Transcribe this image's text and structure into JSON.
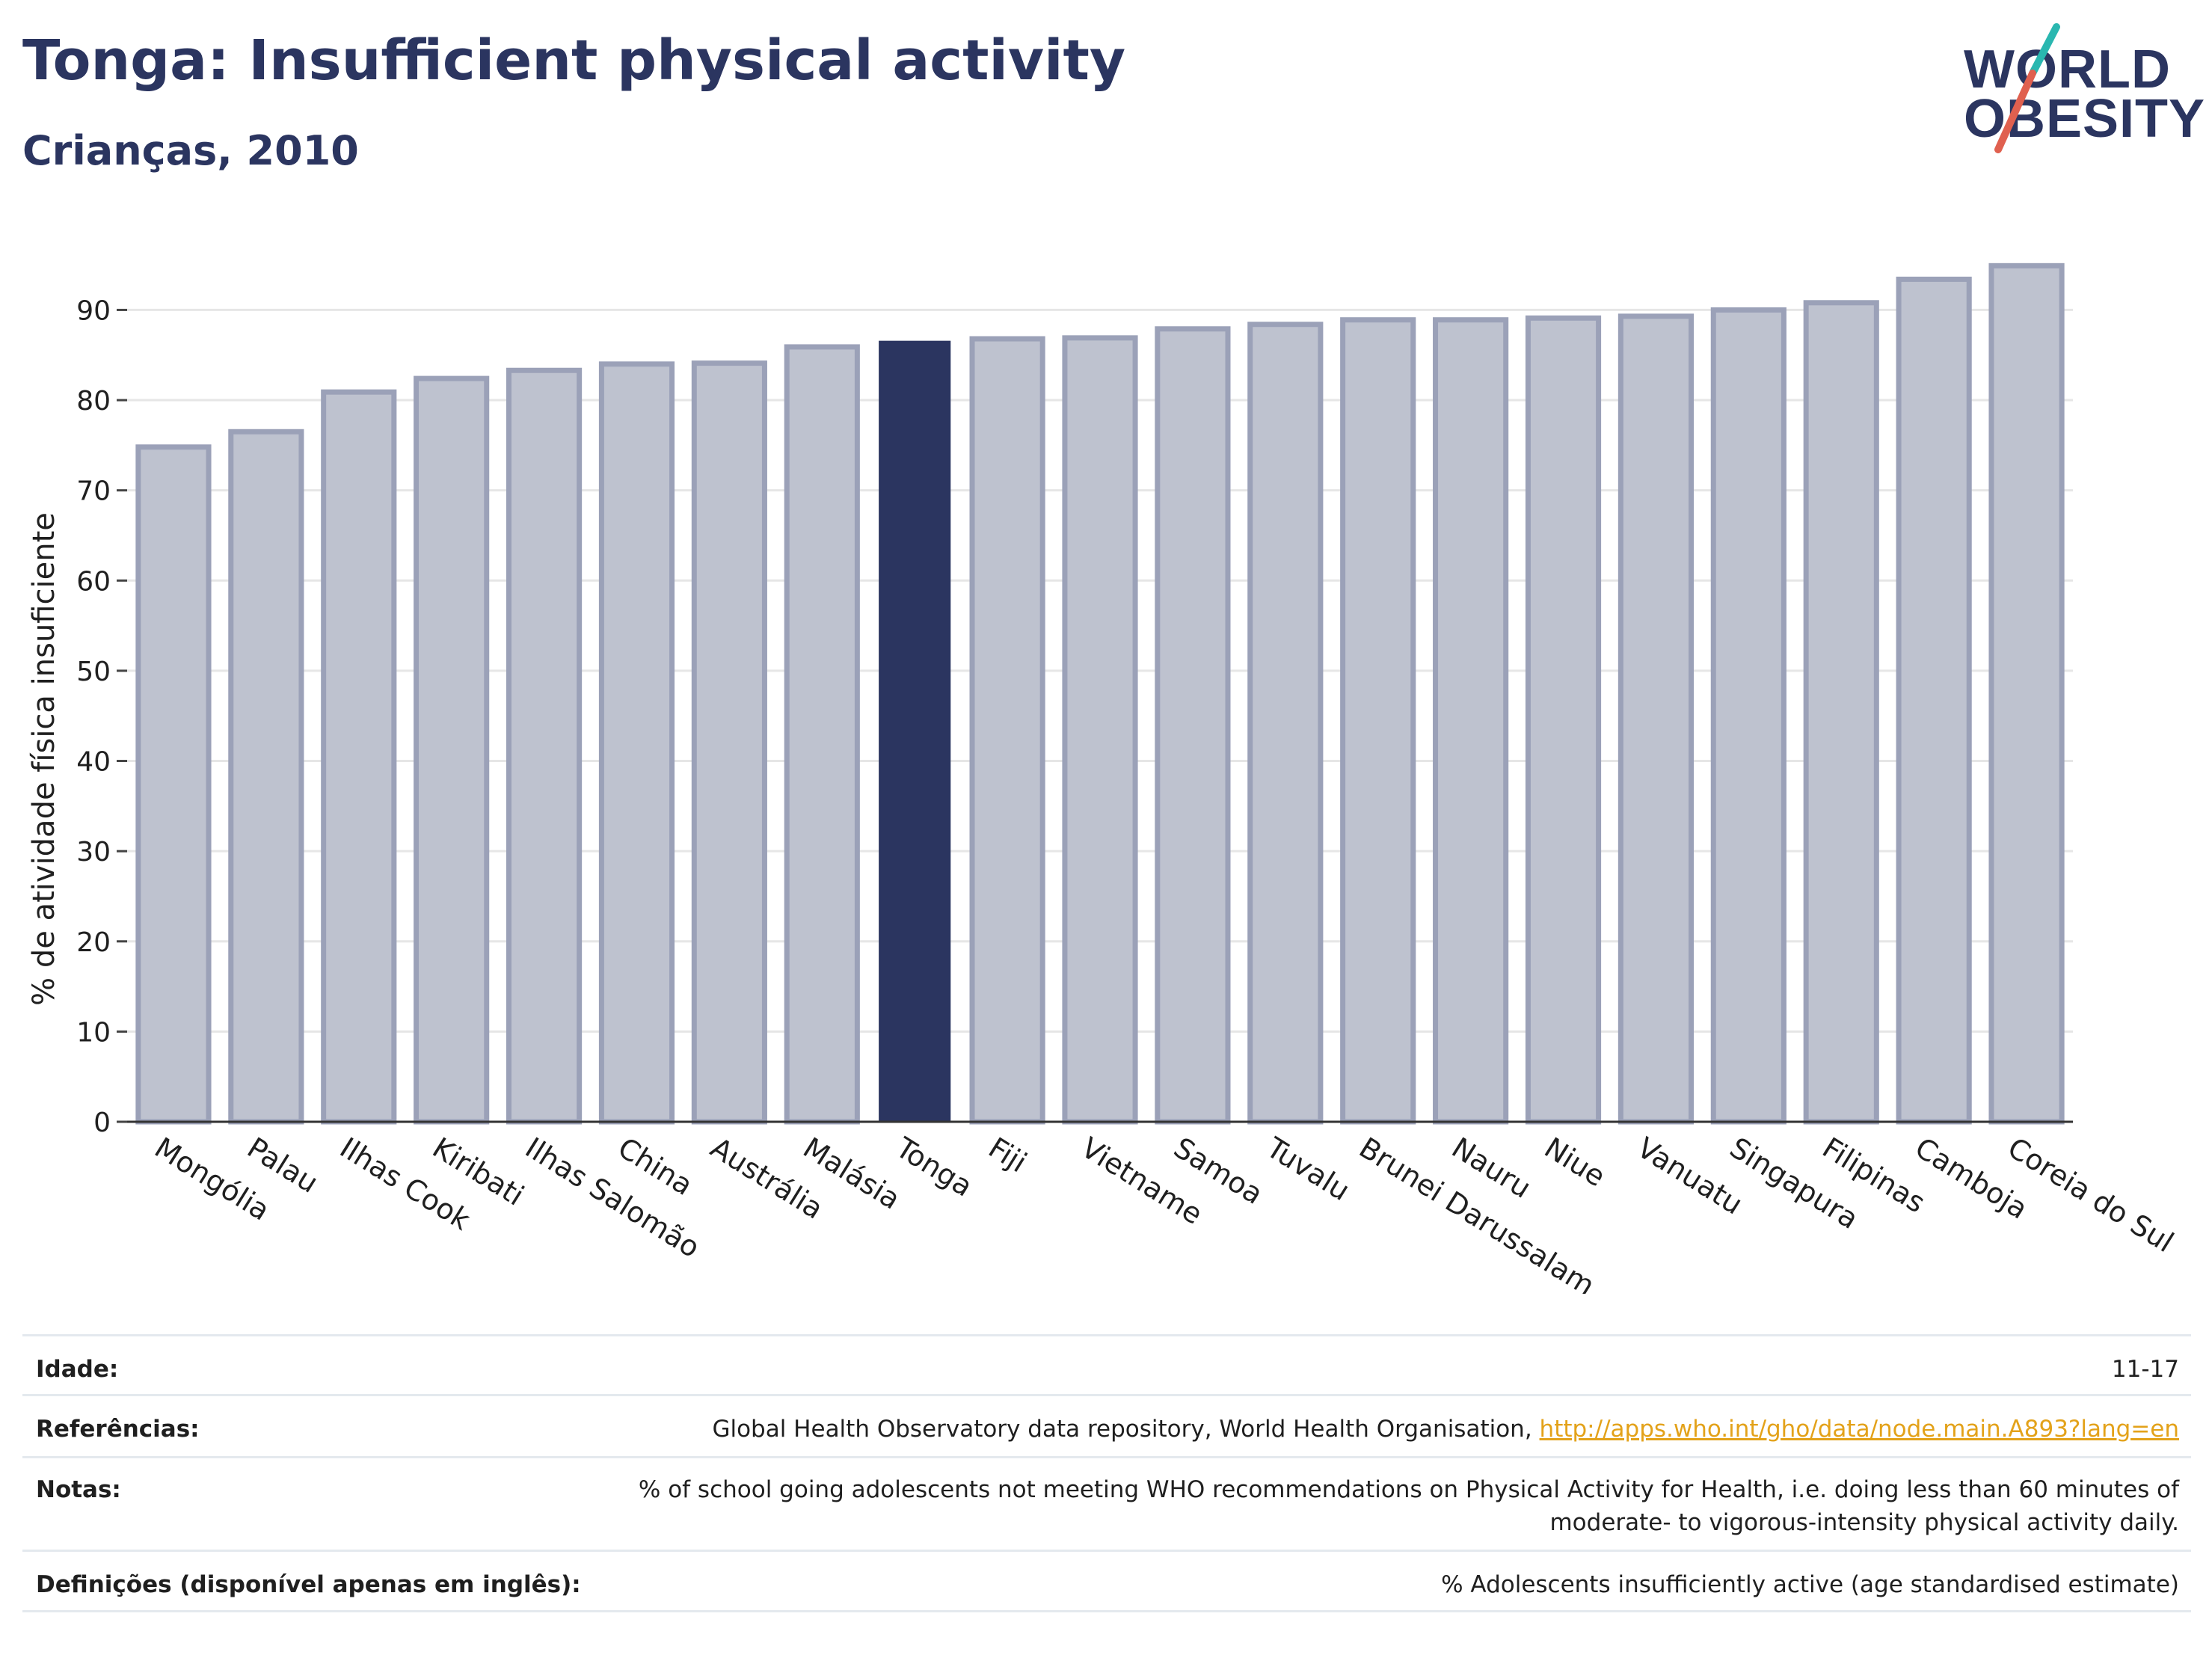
{
  "header": {
    "title": "Tonga: Insufficient physical activity",
    "subtitle": "Crianças, 2010"
  },
  "logo": {
    "line1": "WORLD",
    "line2": "OBESITY",
    "accent_colors": [
      "#2ab7b0",
      "#e0604f"
    ]
  },
  "chart_data": {
    "type": "bar",
    "ylabel": "% de atividade física insuficiente",
    "xlabel": "",
    "ylim": [
      0,
      97
    ],
    "yticks": [
      0,
      10,
      20,
      30,
      40,
      50,
      60,
      70,
      80,
      90
    ],
    "grid": true,
    "highlight": "Tonga",
    "colors": {
      "bar": "#bec2cf",
      "bar_border": "#9ba1b8",
      "highlight": "#2b3560"
    },
    "categories": [
      "Mongólia",
      "Palau",
      "Ilhas Cook",
      "Kiribati",
      "Ilhas Salomão",
      "China",
      "Austrália",
      "Malásia",
      "Tonga",
      "Fiji",
      "Vietname",
      "Samoa",
      "Tuvalu",
      "Brunei Darussalam",
      "Nauru",
      "Niue",
      "Vanuatu",
      "Singapura",
      "Filipinas",
      "Camboja",
      "Coreia do Sul"
    ],
    "values": [
      74.8,
      76.5,
      80.9,
      82.4,
      83.3,
      84.0,
      84.1,
      85.9,
      86.5,
      86.8,
      86.9,
      87.9,
      88.4,
      88.9,
      88.9,
      89.1,
      89.3,
      90.0,
      90.8,
      93.4,
      94.9
    ]
  },
  "footer": {
    "rows": [
      {
        "label": "Idade:",
        "value": "11-17"
      },
      {
        "label": "Referências:",
        "value": "Global Health Observatory data repository, World Health Organisation,",
        "link": "http://apps.who.int/gho/data/node.main.A893?lang=en"
      },
      {
        "label": "Notas:",
        "value": "% of school going adolescents not meeting WHO recommendations on Physical Activity for Health, i.e. doing less than 60 minutes of moderate- to vigorous-intensity physical activity daily."
      },
      {
        "label": "Definições (disponível apenas em inglês):",
        "value": "% Adolescents insufficiently active (age standardised estimate)"
      }
    ]
  }
}
